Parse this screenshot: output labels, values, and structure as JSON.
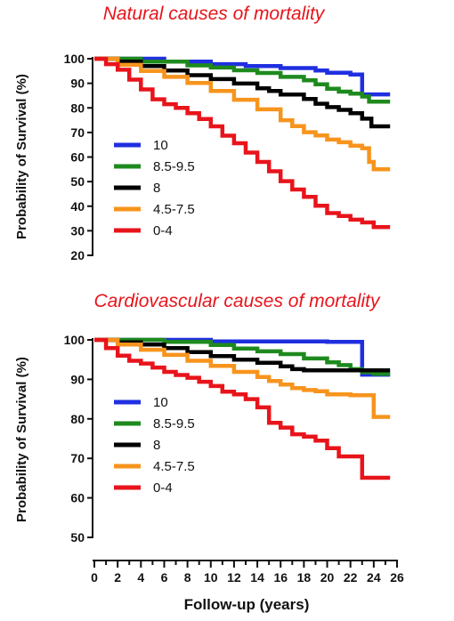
{
  "x_axis": {
    "label": "Follow-up (years)",
    "range": [
      0,
      26
    ],
    "ticks": [
      0,
      2,
      4,
      6,
      8,
      10,
      12,
      14,
      16,
      18,
      20,
      22,
      24,
      26
    ]
  },
  "chart_data": [
    {
      "type": "line",
      "subtype": "kaplan-meier step",
      "title": "Natural causes of mortality",
      "xlabel": "Follow-up (years)",
      "ylabel": "Probability of Survival (%)",
      "xlim": [
        0,
        26
      ],
      "ylim": [
        20,
        100
      ],
      "yticks": [
        20,
        30,
        40,
        50,
        60,
        70,
        80,
        90,
        100
      ],
      "legend_position": "left-middle",
      "series": [
        {
          "name": "10",
          "color": "#1f2fe0",
          "points": [
            [
              0,
              100
            ],
            [
              6,
              98.8
            ],
            [
              10,
              97.8
            ],
            [
              13,
              97
            ],
            [
              16,
              96.2
            ],
            [
              19,
              95.2
            ],
            [
              20,
              94.3
            ],
            [
              22,
              93.6
            ],
            [
              23,
              93.6
            ],
            [
              23,
              85.5
            ],
            [
              25.4,
              85.5
            ]
          ]
        },
        {
          "name": "8.5-9.5",
          "color": "#1e8a1e",
          "points": [
            [
              0,
              100
            ],
            [
              4,
              98.8
            ],
            [
              8,
              97.3
            ],
            [
              10,
              96.4
            ],
            [
              12,
              95.3
            ],
            [
              14,
              94.2
            ],
            [
              16,
              92.6
            ],
            [
              18,
              91.2
            ],
            [
              19,
              89.6
            ],
            [
              20,
              87.8
            ],
            [
              21,
              86.6
            ],
            [
              22,
              85.8
            ],
            [
              23,
              84.6
            ],
            [
              23.6,
              82.5
            ],
            [
              25.4,
              82.5
            ]
          ]
        },
        {
          "name": "8",
          "color": "#000000",
          "points": [
            [
              0,
              100
            ],
            [
              2,
              98.8
            ],
            [
              4,
              97
            ],
            [
              6,
              95.2
            ],
            [
              8,
              93.3
            ],
            [
              10,
              91.7
            ],
            [
              12,
              89.9
            ],
            [
              14,
              88
            ],
            [
              15,
              86.9
            ],
            [
              16,
              85.4
            ],
            [
              18,
              83.6
            ],
            [
              19,
              81.7
            ],
            [
              20,
              80.3
            ],
            [
              21,
              79.2
            ],
            [
              22,
              77.8
            ],
            [
              23,
              75.6
            ],
            [
              23.8,
              72.5
            ],
            [
              25.4,
              72.5
            ]
          ]
        },
        {
          "name": "4.5-7.5",
          "color": "#f7941d",
          "points": [
            [
              0,
              100
            ],
            [
              2,
              97.5
            ],
            [
              4,
              95
            ],
            [
              6,
              92.6
            ],
            [
              8,
              90.1
            ],
            [
              10,
              86.9
            ],
            [
              12,
              83.3
            ],
            [
              14,
              79.4
            ],
            [
              16,
              75
            ],
            [
              17,
              72.6
            ],
            [
              18,
              70.1
            ],
            [
              19,
              68.8
            ],
            [
              20,
              67.1
            ],
            [
              21,
              66
            ],
            [
              22,
              64.6
            ],
            [
              23,
              63.6
            ],
            [
              23.6,
              58
            ],
            [
              24,
              55
            ],
            [
              25.4,
              55
            ]
          ]
        },
        {
          "name": "0-4",
          "color": "#e8141b",
          "points": [
            [
              0,
              100
            ],
            [
              1,
              97.8
            ],
            [
              2,
              95.5
            ],
            [
              3,
              91.5
            ],
            [
              4,
              87.5
            ],
            [
              5,
              83.5
            ],
            [
              6,
              81.5
            ],
            [
              7,
              80
            ],
            [
              8,
              77.8
            ],
            [
              9,
              75.5
            ],
            [
              10,
              72.5
            ],
            [
              11,
              68.7
            ],
            [
              12,
              65.6
            ],
            [
              13,
              61.8
            ],
            [
              14,
              58
            ],
            [
              15,
              54.2
            ],
            [
              16,
              50.2
            ],
            [
              17,
              46.8
            ],
            [
              18,
              43.8
            ],
            [
              19,
              40.2
            ],
            [
              20,
              37.2
            ],
            [
              21,
              36
            ],
            [
              22,
              34.5
            ],
            [
              23,
              33.4
            ],
            [
              24,
              31.5
            ],
            [
              25.4,
              31.5
            ]
          ]
        }
      ]
    },
    {
      "type": "line",
      "subtype": "kaplan-meier step",
      "title": "Cardiovascular causes of mortality",
      "xlabel": "Follow-up (years)",
      "ylabel": "Probability of Survival (%)",
      "xlim": [
        0,
        26
      ],
      "ylim": [
        50,
        100
      ],
      "yticks": [
        50,
        60,
        70,
        80,
        90,
        100
      ],
      "legend_position": "left-lower",
      "series": [
        {
          "name": "10",
          "color": "#1f2fe0",
          "points": [
            [
              0,
              100
            ],
            [
              10,
              99.6
            ],
            [
              20,
              99.5
            ],
            [
              23,
              99.5
            ],
            [
              23,
              91.2
            ],
            [
              25.4,
              91.2
            ]
          ]
        },
        {
          "name": "8.5-9.5",
          "color": "#1e8a1e",
          "points": [
            [
              0,
              100
            ],
            [
              6,
              99.5
            ],
            [
              10,
              98.7
            ],
            [
              12,
              97.8
            ],
            [
              14,
              97.1
            ],
            [
              16,
              96.4
            ],
            [
              18,
              95.3
            ],
            [
              20,
              94.3
            ],
            [
              21,
              93.6
            ],
            [
              22,
              92.6
            ],
            [
              23,
              91.8
            ],
            [
              24,
              91.4
            ],
            [
              25.4,
              91.4
            ]
          ]
        },
        {
          "name": "8",
          "color": "#000000",
          "points": [
            [
              0,
              100
            ],
            [
              2,
              99.4
            ],
            [
              4,
              98.8
            ],
            [
              6,
              97.9
            ],
            [
              8,
              96.9
            ],
            [
              10,
              95.9
            ],
            [
              12,
              95
            ],
            [
              14,
              94.2
            ],
            [
              16,
              93.3
            ],
            [
              17,
              92.6
            ],
            [
              18,
              92.3
            ],
            [
              25.4,
              92.3
            ]
          ]
        },
        {
          "name": "4.5-7.5",
          "color": "#f7941d",
          "points": [
            [
              0,
              100
            ],
            [
              2,
              98.8
            ],
            [
              4,
              97.5
            ],
            [
              6,
              96.2
            ],
            [
              8,
              94.7
            ],
            [
              10,
              93.4
            ],
            [
              12,
              91.9
            ],
            [
              14,
              90.6
            ],
            [
              15,
              89.6
            ],
            [
              16,
              88.7
            ],
            [
              17,
              87.8
            ],
            [
              18,
              87.3
            ],
            [
              19,
              87
            ],
            [
              20,
              86.2
            ],
            [
              22,
              86
            ],
            [
              24,
              85.9
            ],
            [
              24,
              80.5
            ],
            [
              25.4,
              80.5
            ]
          ]
        },
        {
          "name": "0-4",
          "color": "#e8141b",
          "points": [
            [
              0,
              100
            ],
            [
              1,
              97.9
            ],
            [
              2,
              96
            ],
            [
              3,
              94.7
            ],
            [
              4,
              94
            ],
            [
              5,
              93
            ],
            [
              6,
              91.9
            ],
            [
              7,
              91.1
            ],
            [
              8,
              90.4
            ],
            [
              9,
              89.4
            ],
            [
              10,
              88.3
            ],
            [
              11,
              86.9
            ],
            [
              12,
              86.2
            ],
            [
              13,
              85
            ],
            [
              14,
              82.9
            ],
            [
              15,
              79
            ],
            [
              16,
              77.8
            ],
            [
              17,
              76.1
            ],
            [
              18,
              75.5
            ],
            [
              19,
              74.5
            ],
            [
              20,
              72.6
            ],
            [
              21,
              70.5
            ],
            [
              23,
              70.5
            ],
            [
              23,
              65.1
            ],
            [
              25.4,
              65.1
            ]
          ]
        }
      ]
    }
  ]
}
